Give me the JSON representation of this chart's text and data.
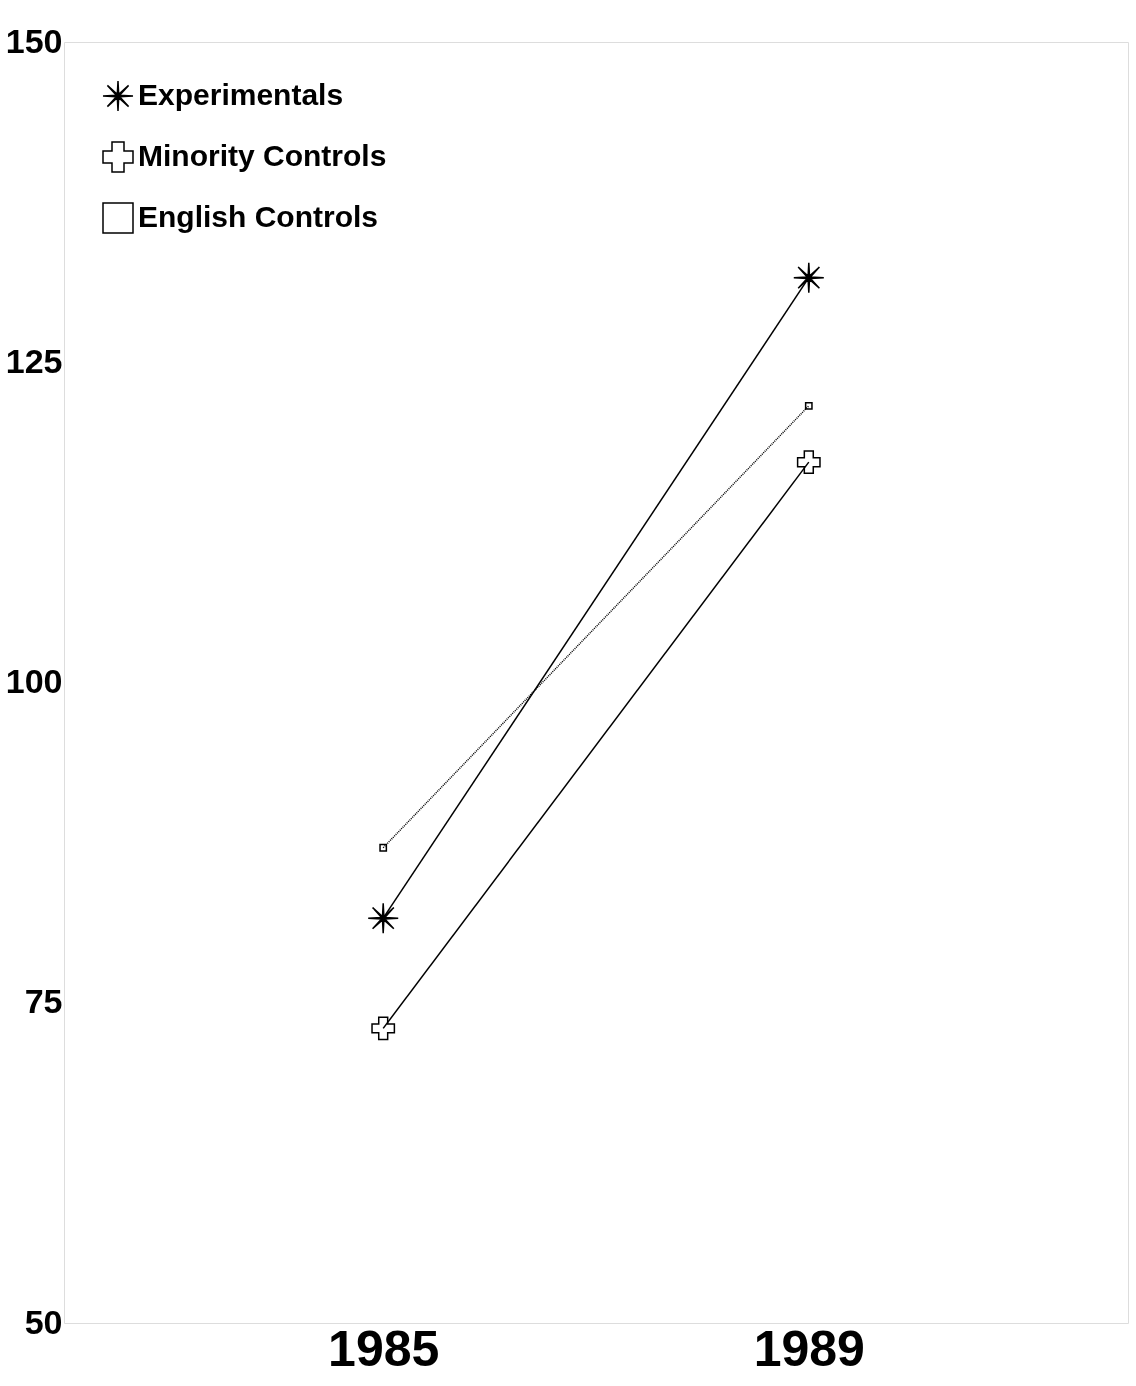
{
  "chart_data": {
    "type": "line",
    "categories": [
      "1985",
      "1989"
    ],
    "ylim": [
      50,
      150
    ],
    "yticks": [
      50,
      75,
      100,
      125,
      150
    ],
    "grid": false,
    "legend": "top left",
    "series": [
      {
        "name": "Experimentals",
        "color": "#000000",
        "marker": "star",
        "line_style": "solid",
        "values": [
          81.6,
          131.6
        ]
      },
      {
        "name": "Minority Controls",
        "color": "#000000",
        "marker": "cross",
        "line_style": "solid",
        "values": [
          73.0,
          117.2
        ]
      },
      {
        "name": "English Controls",
        "color": "#000000",
        "marker": "square",
        "line_style": "dotted",
        "values": [
          87.1,
          121.6
        ]
      }
    ]
  }
}
